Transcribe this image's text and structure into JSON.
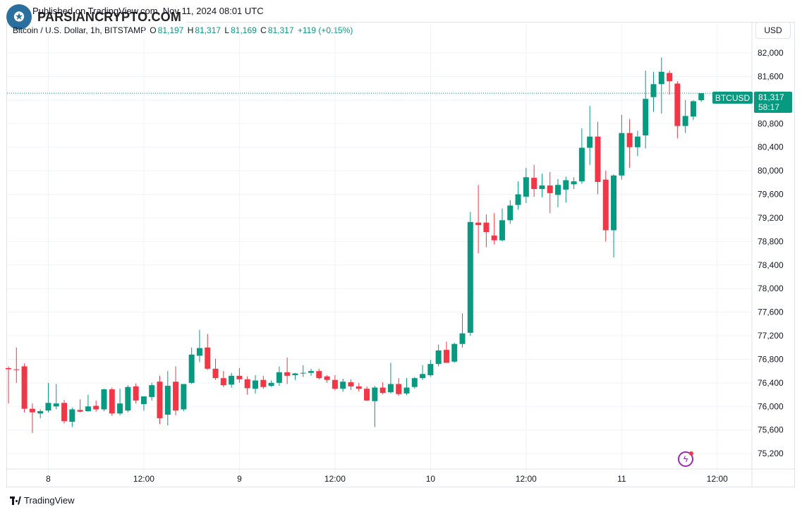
{
  "header": {
    "source_line": "Published on TradingView.com, Nov 11, 2024 08:01 UTC",
    "watermark_text": "PARSIANCRYPTO.COM"
  },
  "legend": {
    "symbol": "Bitcoin / U.S. Dollar, 1h, BITSTAMP",
    "o_label": "O",
    "o_value": "81,197",
    "h_label": "H",
    "h_value": "81,317",
    "l_label": "L",
    "l_value": "81,169",
    "c_label": "C",
    "c_value": "81,317",
    "change": "+119 (+0.15%)"
  },
  "currency_button": "USD",
  "price_tag": {
    "symbol": "BTCUSD",
    "price": "81,317",
    "countdown": "58:17"
  },
  "footer": {
    "brand": "TradingView"
  },
  "colors": {
    "up": "#089981",
    "down": "#f23645",
    "grid": "#f0f3fa",
    "text": "#131722",
    "tag_symbol_bg": "#089981"
  },
  "chart_data": {
    "type": "candlestick",
    "symbol": "BTCUSD",
    "interval": "1h",
    "y_ticks": [
      75200,
      75600,
      76000,
      76400,
      76800,
      77200,
      77600,
      78000,
      78400,
      78800,
      79200,
      79600,
      80000,
      80400,
      80800,
      81200,
      81600,
      82000
    ],
    "y_tick_labels": [
      "75,200",
      "75,600",
      "76,000",
      "76,400",
      "76,800",
      "77,200",
      "77,600",
      "78,000",
      "78,400",
      "78,800",
      "79,200",
      "79,600",
      "80,000",
      "80,400",
      "80,800",
      "81,200",
      "81,600",
      "82,000"
    ],
    "ylim": [
      74950,
      82240
    ],
    "x_ticks": [
      {
        "label": "8",
        "index": 5
      },
      {
        "label": "12:00",
        "index": 17
      },
      {
        "label": "9",
        "index": 29
      },
      {
        "label": "12:00",
        "index": 41
      },
      {
        "label": "10",
        "index": 53
      },
      {
        "label": "12:00",
        "index": 65
      },
      {
        "label": "11",
        "index": 77
      },
      {
        "label": "12:00",
        "index": 89
      }
    ],
    "last_price": 81317,
    "candles": [
      {
        "o": 76650,
        "h": 76680,
        "l": 76050,
        "c": 76630
      },
      {
        "o": 76630,
        "h": 77000,
        "l": 76400,
        "c": 76620
      },
      {
        "o": 76680,
        "h": 76730,
        "l": 75900,
        "c": 75960
      },
      {
        "o": 75960,
        "h": 76050,
        "l": 75550,
        "c": 75900
      },
      {
        "o": 75880,
        "h": 75950,
        "l": 75800,
        "c": 75920
      },
      {
        "o": 75930,
        "h": 76400,
        "l": 75900,
        "c": 76060
      },
      {
        "o": 76000,
        "h": 76380,
        "l": 75950,
        "c": 76050
      },
      {
        "o": 76060,
        "h": 76110,
        "l": 75710,
        "c": 75750
      },
      {
        "o": 75740,
        "h": 75980,
        "l": 75650,
        "c": 75950
      },
      {
        "o": 75940,
        "h": 76120,
        "l": 75900,
        "c": 75910
      },
      {
        "o": 75920,
        "h": 76200,
        "l": 75910,
        "c": 76000
      },
      {
        "o": 76010,
        "h": 76100,
        "l": 75910,
        "c": 75950
      },
      {
        "o": 75950,
        "h": 76300,
        "l": 75920,
        "c": 76290
      },
      {
        "o": 76290,
        "h": 76320,
        "l": 75840,
        "c": 75880
      },
      {
        "o": 75880,
        "h": 76300,
        "l": 75850,
        "c": 76050
      },
      {
        "o": 75930,
        "h": 76360,
        "l": 75900,
        "c": 76330
      },
      {
        "o": 76340,
        "h": 76390,
        "l": 76050,
        "c": 76100
      },
      {
        "o": 76040,
        "h": 76150,
        "l": 75930,
        "c": 76170
      },
      {
        "o": 76160,
        "h": 76400,
        "l": 76100,
        "c": 76360
      },
      {
        "o": 76420,
        "h": 76520,
        "l": 75700,
        "c": 75800
      },
      {
        "o": 75860,
        "h": 76600,
        "l": 75680,
        "c": 76350
      },
      {
        "o": 76420,
        "h": 76680,
        "l": 75850,
        "c": 75930
      },
      {
        "o": 75950,
        "h": 76350,
        "l": 75920,
        "c": 76380
      },
      {
        "o": 76400,
        "h": 77000,
        "l": 76380,
        "c": 76880
      },
      {
        "o": 76860,
        "h": 77300,
        "l": 76750,
        "c": 76990
      },
      {
        "o": 77000,
        "h": 77230,
        "l": 76620,
        "c": 76640
      },
      {
        "o": 76640,
        "h": 76810,
        "l": 76450,
        "c": 76480
      },
      {
        "o": 76480,
        "h": 76600,
        "l": 76330,
        "c": 76360
      },
      {
        "o": 76370,
        "h": 76570,
        "l": 76320,
        "c": 76520
      },
      {
        "o": 76520,
        "h": 76650,
        "l": 76400,
        "c": 76460
      },
      {
        "o": 76460,
        "h": 76510,
        "l": 76200,
        "c": 76310
      },
      {
        "o": 76300,
        "h": 76530,
        "l": 76220,
        "c": 76440
      },
      {
        "o": 76450,
        "h": 76520,
        "l": 76300,
        "c": 76330
      },
      {
        "o": 76350,
        "h": 76440,
        "l": 76330,
        "c": 76400
      },
      {
        "o": 76400,
        "h": 76680,
        "l": 76350,
        "c": 76580
      },
      {
        "o": 76580,
        "h": 76830,
        "l": 76380,
        "c": 76520
      },
      {
        "o": 76530,
        "h": 76570,
        "l": 76450,
        "c": 76560
      },
      {
        "o": 76560,
        "h": 76700,
        "l": 76500,
        "c": 76570
      },
      {
        "o": 76570,
        "h": 76640,
        "l": 76520,
        "c": 76600
      },
      {
        "o": 76600,
        "h": 76640,
        "l": 76460,
        "c": 76480
      },
      {
        "o": 76510,
        "h": 76530,
        "l": 76400,
        "c": 76450
      },
      {
        "o": 76450,
        "h": 76530,
        "l": 76270,
        "c": 76300
      },
      {
        "o": 76300,
        "h": 76470,
        "l": 76250,
        "c": 76420
      },
      {
        "o": 76410,
        "h": 76460,
        "l": 76280,
        "c": 76340
      },
      {
        "o": 76340,
        "h": 76400,
        "l": 76250,
        "c": 76300
      },
      {
        "o": 76300,
        "h": 76340,
        "l": 76090,
        "c": 76100
      },
      {
        "o": 76090,
        "h": 76350,
        "l": 75650,
        "c": 76320
      },
      {
        "o": 76320,
        "h": 76410,
        "l": 76210,
        "c": 76230
      },
      {
        "o": 76240,
        "h": 76740,
        "l": 76220,
        "c": 76380
      },
      {
        "o": 76380,
        "h": 76480,
        "l": 76180,
        "c": 76210
      },
      {
        "o": 76220,
        "h": 76480,
        "l": 76190,
        "c": 76320
      },
      {
        "o": 76330,
        "h": 76500,
        "l": 76300,
        "c": 76480
      },
      {
        "o": 76480,
        "h": 76700,
        "l": 76450,
        "c": 76550
      },
      {
        "o": 76530,
        "h": 76790,
        "l": 76500,
        "c": 76720
      },
      {
        "o": 76720,
        "h": 77050,
        "l": 76680,
        "c": 76950
      },
      {
        "o": 76960,
        "h": 77100,
        "l": 76780,
        "c": 76740
      },
      {
        "o": 76760,
        "h": 77080,
        "l": 76740,
        "c": 77060
      },
      {
        "o": 77060,
        "h": 77580,
        "l": 77000,
        "c": 77240
      },
      {
        "o": 77250,
        "h": 79300,
        "l": 77200,
        "c": 79130
      },
      {
        "o": 79120,
        "h": 79760,
        "l": 78600,
        "c": 79080
      },
      {
        "o": 79120,
        "h": 79260,
        "l": 78700,
        "c": 78960
      },
      {
        "o": 78900,
        "h": 79280,
        "l": 78750,
        "c": 78820
      },
      {
        "o": 78820,
        "h": 79360,
        "l": 78800,
        "c": 79160
      },
      {
        "o": 79160,
        "h": 79500,
        "l": 79100,
        "c": 79410
      },
      {
        "o": 79420,
        "h": 79820,
        "l": 79340,
        "c": 79600
      },
      {
        "o": 79560,
        "h": 80050,
        "l": 79450,
        "c": 79890
      },
      {
        "o": 79880,
        "h": 80100,
        "l": 79560,
        "c": 79690
      },
      {
        "o": 79690,
        "h": 79950,
        "l": 79550,
        "c": 79750
      },
      {
        "o": 79750,
        "h": 79980,
        "l": 79280,
        "c": 79620
      },
      {
        "o": 79590,
        "h": 79860,
        "l": 79380,
        "c": 79760
      },
      {
        "o": 79680,
        "h": 79900,
        "l": 79460,
        "c": 79840
      },
      {
        "o": 79770,
        "h": 79890,
        "l": 79690,
        "c": 79820
      },
      {
        "o": 79820,
        "h": 80720,
        "l": 79780,
        "c": 80390
      },
      {
        "o": 80390,
        "h": 81100,
        "l": 80100,
        "c": 80580
      },
      {
        "o": 80580,
        "h": 80830,
        "l": 79600,
        "c": 79810
      },
      {
        "o": 79850,
        "h": 80000,
        "l": 78800,
        "c": 78990
      },
      {
        "o": 78990,
        "h": 79940,
        "l": 78530,
        "c": 79920
      },
      {
        "o": 79920,
        "h": 80950,
        "l": 79850,
        "c": 80640
      },
      {
        "o": 80640,
        "h": 80880,
        "l": 80050,
        "c": 80400
      },
      {
        "o": 80400,
        "h": 80680,
        "l": 80250,
        "c": 80580
      },
      {
        "o": 80600,
        "h": 81700,
        "l": 80380,
        "c": 81220
      },
      {
        "o": 81250,
        "h": 81680,
        "l": 81000,
        "c": 81470
      },
      {
        "o": 81470,
        "h": 81920,
        "l": 80970,
        "c": 81680
      },
      {
        "o": 81660,
        "h": 81700,
        "l": 81290,
        "c": 81520
      },
      {
        "o": 81480,
        "h": 81520,
        "l": 80550,
        "c": 80760
      },
      {
        "o": 80760,
        "h": 81200,
        "l": 80640,
        "c": 80930
      },
      {
        "o": 80920,
        "h": 81200,
        "l": 80860,
        "c": 81180
      },
      {
        "o": 81197,
        "h": 81317,
        "l": 81169,
        "c": 81317
      }
    ]
  }
}
